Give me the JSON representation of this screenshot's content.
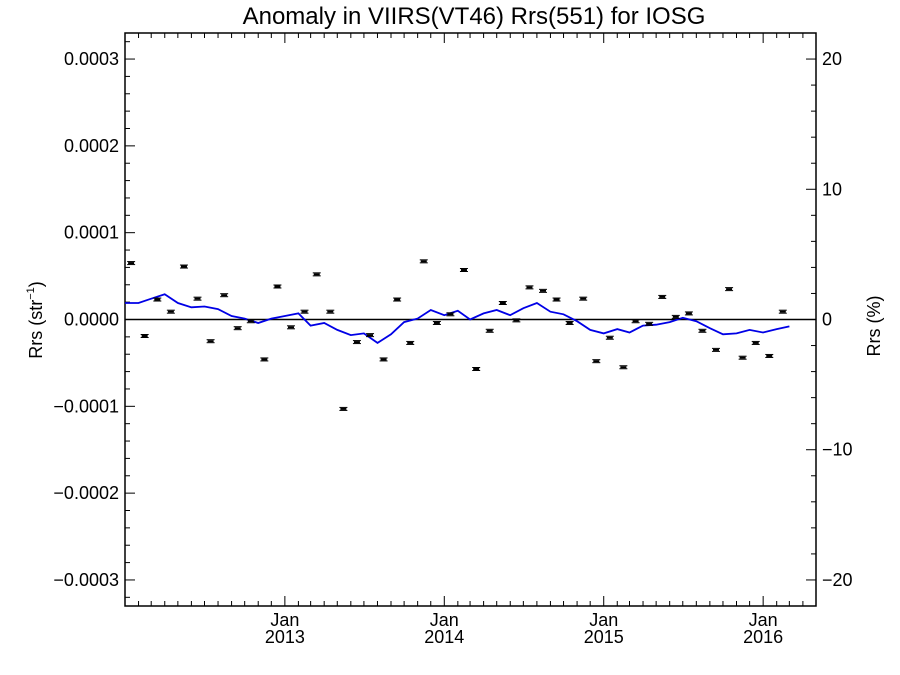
{
  "chart_data": {
    "type": "line",
    "title": "Anomaly in VIIRS(VT46) Rrs(551) for IOSG",
    "ylabel_left": {
      "base": "Rrs (str",
      "sup": "−1",
      "close": ")"
    },
    "ylabel_right": "Rrs (%)",
    "x_range": [
      "2012-01-01",
      "2016-05-01"
    ],
    "y_left_range": [
      -0.00033,
      0.00033
    ],
    "y_right_range": [
      -22,
      22
    ],
    "y_left_ticks": [
      {
        "value": 0.0003,
        "label": "0.0003"
      },
      {
        "value": 0.0002,
        "label": "0.0002"
      },
      {
        "value": 0.0001,
        "label": "0.0001"
      },
      {
        "value": 0.0,
        "label": "0.0000"
      },
      {
        "value": -0.0001,
        "label": "−0.0001"
      },
      {
        "value": -0.0002,
        "label": "−0.0002"
      },
      {
        "value": -0.0003,
        "label": "−0.0003"
      }
    ],
    "y_right_ticks": [
      {
        "value": 20,
        "label": "20"
      },
      {
        "value": 10,
        "label": "10"
      },
      {
        "value": 0,
        "label": "0"
      },
      {
        "value": -10,
        "label": "−10"
      },
      {
        "value": -20,
        "label": "−20"
      }
    ],
    "x_ticks": [
      {
        "date": "2013-01-01",
        "month": "Jan",
        "year": "2013"
      },
      {
        "date": "2014-01-01",
        "month": "Jan",
        "year": "2014"
      },
      {
        "date": "2015-01-01",
        "month": "Jan",
        "year": "2015"
      },
      {
        "date": "2016-01-01",
        "month": "Jan",
        "year": "2016"
      }
    ],
    "reference_line": 0.0,
    "series": [
      {
        "kind": "points",
        "color": "#000000",
        "points": [
          {
            "x": "2012-01-15",
            "y": 6.5e-05
          },
          {
            "x": "2012-02-15",
            "y": -1.9e-05
          },
          {
            "x": "2012-03-15",
            "y": 2.3e-05
          },
          {
            "x": "2012-04-15",
            "y": 9e-06
          },
          {
            "x": "2012-05-15",
            "y": 6.1e-05
          },
          {
            "x": "2012-06-15",
            "y": 2.4e-05
          },
          {
            "x": "2012-07-15",
            "y": -2.5e-05
          },
          {
            "x": "2012-08-15",
            "y": 2.8e-05
          },
          {
            "x": "2012-09-15",
            "y": -1e-05
          },
          {
            "x": "2012-10-15",
            "y": -2e-06
          },
          {
            "x": "2012-11-15",
            "y": -4.6e-05
          },
          {
            "x": "2012-12-15",
            "y": 3.8e-05
          },
          {
            "x": "2013-01-15",
            "y": -9e-06
          },
          {
            "x": "2013-02-15",
            "y": 9e-06
          },
          {
            "x": "2013-03-15",
            "y": 5.2e-05
          },
          {
            "x": "2013-04-15",
            "y": 9e-06
          },
          {
            "x": "2013-05-15",
            "y": -0.000103
          },
          {
            "x": "2013-06-15",
            "y": -2.6e-05
          },
          {
            "x": "2013-07-15",
            "y": -1.8e-05
          },
          {
            "x": "2013-08-15",
            "y": -4.6e-05
          },
          {
            "x": "2013-09-15",
            "y": 2.3e-05
          },
          {
            "x": "2013-10-15",
            "y": -2.7e-05
          },
          {
            "x": "2013-11-15",
            "y": 6.7e-05
          },
          {
            "x": "2013-12-15",
            "y": -4e-06
          },
          {
            "x": "2014-01-15",
            "y": 6e-06
          },
          {
            "x": "2014-02-15",
            "y": 5.7e-05
          },
          {
            "x": "2014-03-15",
            "y": -5.7e-05
          },
          {
            "x": "2014-04-15",
            "y": -1.3e-05
          },
          {
            "x": "2014-05-15",
            "y": 1.9e-05
          },
          {
            "x": "2014-06-15",
            "y": -1e-06
          },
          {
            "x": "2014-07-15",
            "y": 3.7e-05
          },
          {
            "x": "2014-08-15",
            "y": 3.3e-05
          },
          {
            "x": "2014-09-15",
            "y": 2.3e-05
          },
          {
            "x": "2014-10-15",
            "y": -4e-06
          },
          {
            "x": "2014-11-15",
            "y": 2.4e-05
          },
          {
            "x": "2014-12-15",
            "y": -4.8e-05
          },
          {
            "x": "2015-01-15",
            "y": -2.1e-05
          },
          {
            "x": "2015-02-15",
            "y": -5.5e-05
          },
          {
            "x": "2015-03-15",
            "y": -2e-06
          },
          {
            "x": "2015-04-15",
            "y": -5e-06
          },
          {
            "x": "2015-05-15",
            "y": 2.6e-05
          },
          {
            "x": "2015-06-15",
            "y": 3e-06
          },
          {
            "x": "2015-07-15",
            "y": 7e-06
          },
          {
            "x": "2015-08-15",
            "y": -1.3e-05
          },
          {
            "x": "2015-09-15",
            "y": -3.5e-05
          },
          {
            "x": "2015-10-15",
            "y": 3.5e-05
          },
          {
            "x": "2015-11-15",
            "y": -4.4e-05
          },
          {
            "x": "2015-12-15",
            "y": -2.7e-05
          },
          {
            "x": "2016-01-15",
            "y": -4.2e-05
          },
          {
            "x": "2016-02-15",
            "y": 9e-06
          }
        ]
      },
      {
        "kind": "line",
        "color": "#0000e6",
        "points": [
          {
            "x": "2012-01-01",
            "y": 1.9e-05
          },
          {
            "x": "2012-02-01",
            "y": 1.9e-05
          },
          {
            "x": "2012-03-01",
            "y": 2.4e-05
          },
          {
            "x": "2012-04-01",
            "y": 2.9e-05
          },
          {
            "x": "2012-05-01",
            "y": 1.9e-05
          },
          {
            "x": "2012-06-01",
            "y": 1.4e-05
          },
          {
            "x": "2012-07-01",
            "y": 1.5e-05
          },
          {
            "x": "2012-08-01",
            "y": 1.2e-05
          },
          {
            "x": "2012-09-01",
            "y": 4e-06
          },
          {
            "x": "2012-10-01",
            "y": 1e-06
          },
          {
            "x": "2012-11-01",
            "y": -4e-06
          },
          {
            "x": "2012-12-01",
            "y": 1e-06
          },
          {
            "x": "2013-01-01",
            "y": 4e-06
          },
          {
            "x": "2013-02-01",
            "y": 7e-06
          },
          {
            "x": "2013-03-01",
            "y": -7e-06
          },
          {
            "x": "2013-04-01",
            "y": -4e-06
          },
          {
            "x": "2013-05-01",
            "y": -1.2e-05
          },
          {
            "x": "2013-06-01",
            "y": -1.8e-05
          },
          {
            "x": "2013-07-01",
            "y": -1.6e-05
          },
          {
            "x": "2013-08-01",
            "y": -2.7e-05
          },
          {
            "x": "2013-09-01",
            "y": -1.7e-05
          },
          {
            "x": "2013-10-01",
            "y": -3e-06
          },
          {
            "x": "2013-11-01",
            "y": 1e-06
          },
          {
            "x": "2013-12-01",
            "y": 1.1e-05
          },
          {
            "x": "2014-01-01",
            "y": 5e-06
          },
          {
            "x": "2014-02-01",
            "y": 1e-05
          },
          {
            "x": "2014-03-01",
            "y": 0.0
          },
          {
            "x": "2014-04-01",
            "y": 7e-06
          },
          {
            "x": "2014-05-01",
            "y": 1.1e-05
          },
          {
            "x": "2014-06-01",
            "y": 5e-06
          },
          {
            "x": "2014-07-01",
            "y": 1.3e-05
          },
          {
            "x": "2014-08-01",
            "y": 1.9e-05
          },
          {
            "x": "2014-09-01",
            "y": 9e-06
          },
          {
            "x": "2014-10-01",
            "y": 6e-06
          },
          {
            "x": "2014-11-01",
            "y": -2e-06
          },
          {
            "x": "2014-12-01",
            "y": -1.2e-05
          },
          {
            "x": "2015-01-01",
            "y": -1.6e-05
          },
          {
            "x": "2015-02-01",
            "y": -1.1e-05
          },
          {
            "x": "2015-03-01",
            "y": -1.5e-05
          },
          {
            "x": "2015-04-01",
            "y": -7e-06
          },
          {
            "x": "2015-05-01",
            "y": -6e-06
          },
          {
            "x": "2015-06-01",
            "y": -3e-06
          },
          {
            "x": "2015-07-01",
            "y": 2e-06
          },
          {
            "x": "2015-08-01",
            "y": -2e-06
          },
          {
            "x": "2015-09-01",
            "y": -1e-05
          },
          {
            "x": "2015-10-01",
            "y": -1.7e-05
          },
          {
            "x": "2015-11-01",
            "y": -1.6e-05
          },
          {
            "x": "2015-12-01",
            "y": -1.2e-05
          },
          {
            "x": "2016-01-01",
            "y": -1.5e-05
          },
          {
            "x": "2016-02-01",
            "y": -1.1e-05
          },
          {
            "x": "2016-03-01",
            "y": -8e-06
          }
        ]
      }
    ],
    "grid": false,
    "legend": "none"
  }
}
